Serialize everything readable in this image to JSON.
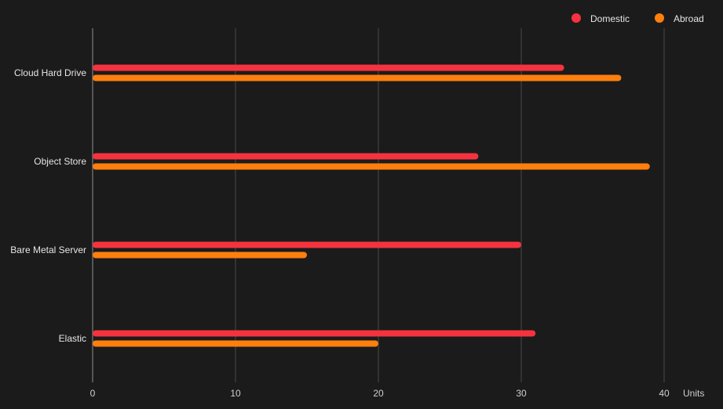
{
  "chart_data": {
    "type": "bar",
    "orientation": "horizontal",
    "categories": [
      "Cloud Hard Drive",
      "Object Store",
      "Bare Metal Server",
      "Elastic"
    ],
    "series": [
      {
        "name": "Domestic",
        "color": "#f5333f",
        "values": [
          33,
          27,
          30,
          31
        ]
      },
      {
        "name": "Abroad",
        "color": "#ff7f0e",
        "values": [
          37,
          39,
          15,
          20
        ]
      }
    ],
    "xlim": [
      0,
      40
    ],
    "x_ticks": [
      0,
      10,
      20,
      30,
      40
    ],
    "x_unit": "Units",
    "grid": true,
    "legend_position": "top-right"
  },
  "colors": {
    "background": "#1b1b1b",
    "grid": "#3a3a3a",
    "axis": "#6a6a6a"
  }
}
